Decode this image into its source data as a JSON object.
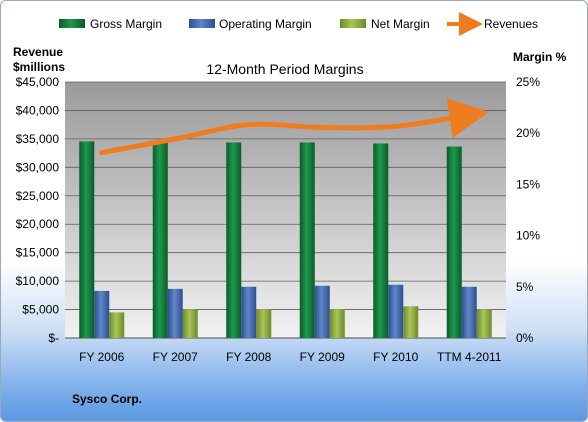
{
  "chart_data": {
    "type": "bar",
    "title": "12-Month Period Margins",
    "ylabel_left": [
      "Revenue",
      "$millions"
    ],
    "ylabel_right": "Margin %",
    "footnote": "Sysco Corp.",
    "categories": [
      "FY 2006",
      "FY 2007",
      "FY 2008",
      "FY 2009",
      "FY 2010",
      "TTM 4-2011"
    ],
    "left_axis": {
      "min": 0,
      "max": 45000,
      "step": 5000,
      "tick_labels": [
        "$-",
        "$5,000",
        "$10,000",
        "$15,000",
        "$20,000",
        "$25,000",
        "$30,000",
        "$35,000",
        "$40,000",
        "$45,000"
      ]
    },
    "right_axis": {
      "min": 0,
      "max": 25,
      "step": 5,
      "tick_labels": [
        "0%",
        "5%",
        "10%",
        "15%",
        "20%",
        "25%"
      ]
    },
    "series": [
      {
        "name": "Gross Margin",
        "axis": "right",
        "kind": "bar",
        "color": "#0f7a3a",
        "values": [
          19.2,
          19.1,
          19.1,
          19.1,
          19.0,
          18.7
        ]
      },
      {
        "name": "Operating Margin",
        "axis": "right",
        "kind": "bar",
        "color": "#3f65a8",
        "values": [
          4.6,
          4.8,
          5.0,
          5.1,
          5.2,
          5.0
        ]
      },
      {
        "name": "Net Margin",
        "axis": "right",
        "kind": "bar",
        "color": "#8cac3e",
        "values": [
          2.5,
          2.8,
          2.8,
          2.8,
          3.1,
          2.8
        ]
      },
      {
        "name": "Revenues",
        "axis": "left",
        "kind": "line",
        "color": "#ee7d1f",
        "values": [
          32600,
          35000,
          37500,
          37000,
          37200,
          39200
        ]
      }
    ],
    "legend_position": "top",
    "grid": true
  }
}
